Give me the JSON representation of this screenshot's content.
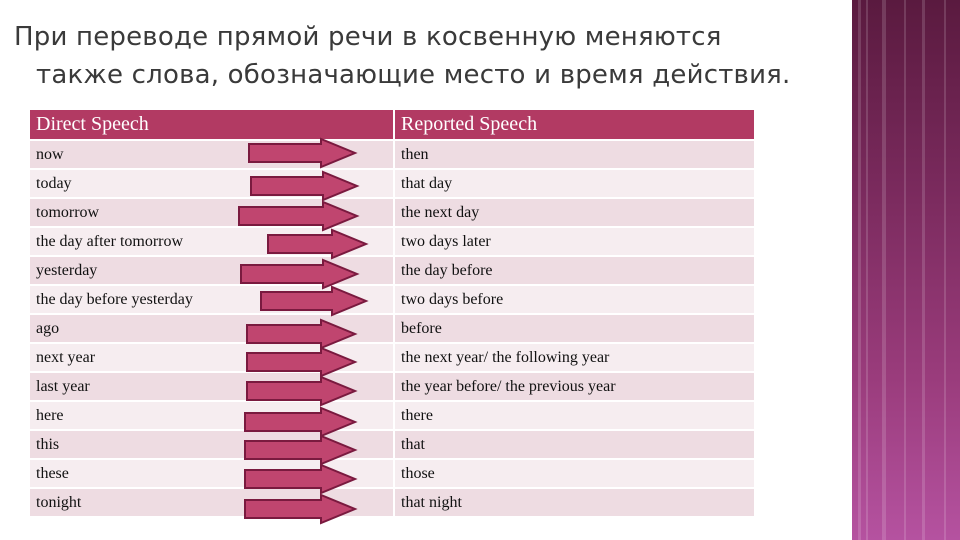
{
  "title": {
    "line1": "При переводе прямой речи в косвенную меняются",
    "line2": "также слова, обозначающие место и время действия."
  },
  "table": {
    "headers": [
      "Direct Speech",
      "Reported Speech"
    ],
    "rows": [
      {
        "direct": "now",
        "reported": "then"
      },
      {
        "direct": "today",
        "reported": "that day"
      },
      {
        "direct": "tomorrow",
        "reported": "the next day"
      },
      {
        "direct": "the day after tomorrow",
        "reported": "two days later"
      },
      {
        "direct": "yesterday",
        "reported": "the day before"
      },
      {
        "direct": "the day before yesterday",
        "reported": "two days before"
      },
      {
        "direct": "ago",
        "reported": "before"
      },
      {
        "direct": "next year",
        "reported": "the next year/ the following year"
      },
      {
        "direct": "last year",
        "reported": "the year before/ the previous year"
      },
      {
        "direct": "here",
        "reported": "there"
      },
      {
        "direct": "this",
        "reported": "that"
      },
      {
        "direct": "these",
        "reported": "those"
      },
      {
        "direct": "tonight",
        "reported": "that night"
      }
    ]
  },
  "colors": {
    "header": "#b23a63",
    "arrow_fill": "#c0456f",
    "arrow_stroke": "#7a1a3f"
  }
}
